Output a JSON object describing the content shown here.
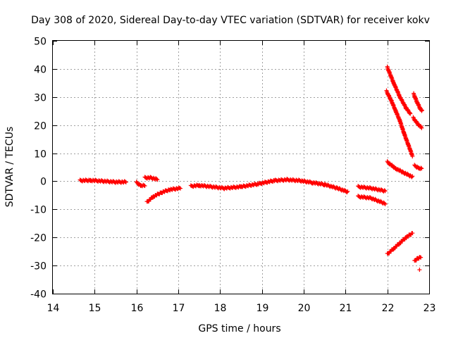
{
  "chart_data": {
    "type": "scatter",
    "title": "Day 308 of 2020, Sidereal Day-to-day VTEC variation (SDTVAR) for receiver kokv",
    "xlabel": "GPS time / hours",
    "ylabel": "SDTVAR / TECUs",
    "xlim": [
      14,
      23
    ],
    "ylim": [
      -40,
      50
    ],
    "xticks": [
      "14",
      "15",
      "16",
      "17",
      "18",
      "19",
      "20",
      "21",
      "22",
      "23"
    ],
    "yticks": [
      "-40",
      "-30",
      "-20",
      "-10",
      "0",
      "10",
      "20",
      "30",
      "40",
      "50"
    ],
    "grid": true,
    "marker": "+",
    "color": "#ff0000",
    "segments": [
      [
        [
          14.65,
          0.2
        ],
        [
          14.9,
          0.3
        ],
        [
          15.2,
          0.0
        ],
        [
          15.5,
          -0.3
        ],
        [
          15.75,
          -0.3
        ]
      ],
      [
        [
          16.0,
          -0.5
        ],
        [
          16.1,
          -1.5
        ],
        [
          16.2,
          -1.5
        ]
      ],
      [
        [
          16.2,
          1.2
        ],
        [
          16.35,
          1.2
        ],
        [
          16.5,
          0.6
        ]
      ],
      [
        [
          16.25,
          -7.5
        ],
        [
          16.4,
          -5.5
        ],
        [
          16.6,
          -4.0
        ],
        [
          16.8,
          -3.0
        ],
        [
          17.05,
          -2.5
        ]
      ],
      [
        [
          17.3,
          -1.8
        ],
        [
          17.5,
          -1.5
        ],
        [
          17.8,
          -2.0
        ],
        [
          18.1,
          -2.5
        ],
        [
          18.5,
          -2.0
        ],
        [
          18.9,
          -1.0
        ],
        [
          19.3,
          0.2
        ],
        [
          19.6,
          0.5
        ],
        [
          19.9,
          0.2
        ],
        [
          20.2,
          -0.5
        ],
        [
          20.5,
          -1.2
        ],
        [
          20.8,
          -2.5
        ],
        [
          21.05,
          -3.8
        ]
      ],
      [
        [
          21.3,
          -2.0
        ],
        [
          21.6,
          -2.5
        ],
        [
          21.95,
          -3.5
        ]
      ],
      [
        [
          21.3,
          -5.5
        ],
        [
          21.6,
          -6.0
        ],
        [
          21.95,
          -8.0
        ]
      ],
      [
        [
          22.0,
          40.5
        ],
        [
          22.15,
          35.0
        ],
        [
          22.3,
          30.0
        ],
        [
          22.45,
          26.0
        ],
        [
          22.55,
          24.0
        ]
      ],
      [
        [
          21.98,
          32.0
        ],
        [
          22.1,
          28.5
        ],
        [
          22.2,
          25.0
        ],
        [
          22.3,
          21.5
        ],
        [
          22.4,
          17.0
        ],
        [
          22.5,
          13.0
        ],
        [
          22.6,
          9.0
        ]
      ],
      [
        [
          22.0,
          6.8
        ],
        [
          22.2,
          4.5
        ],
        [
          22.4,
          3.0
        ],
        [
          22.6,
          1.5
        ]
      ],
      [
        [
          22.63,
          31.0
        ],
        [
          22.7,
          28.5
        ],
        [
          22.78,
          26.0
        ],
        [
          22.83,
          25.0
        ]
      ],
      [
        [
          22.62,
          22.5
        ],
        [
          22.72,
          20.5
        ],
        [
          22.82,
          19.0
        ]
      ],
      [
        [
          22.65,
          5.5
        ],
        [
          22.75,
          4.7
        ],
        [
          22.82,
          4.5
        ]
      ],
      [
        [
          22.0,
          -26.0
        ],
        [
          22.15,
          -24.0
        ],
        [
          22.3,
          -22.0
        ],
        [
          22.45,
          -20.0
        ],
        [
          22.6,
          -18.5
        ]
      ],
      [
        [
          22.65,
          -28.5
        ],
        [
          22.72,
          -27.5
        ],
        [
          22.8,
          -27.0
        ]
      ],
      [
        [
          22.77,
          -31.5
        ]
      ]
    ]
  }
}
